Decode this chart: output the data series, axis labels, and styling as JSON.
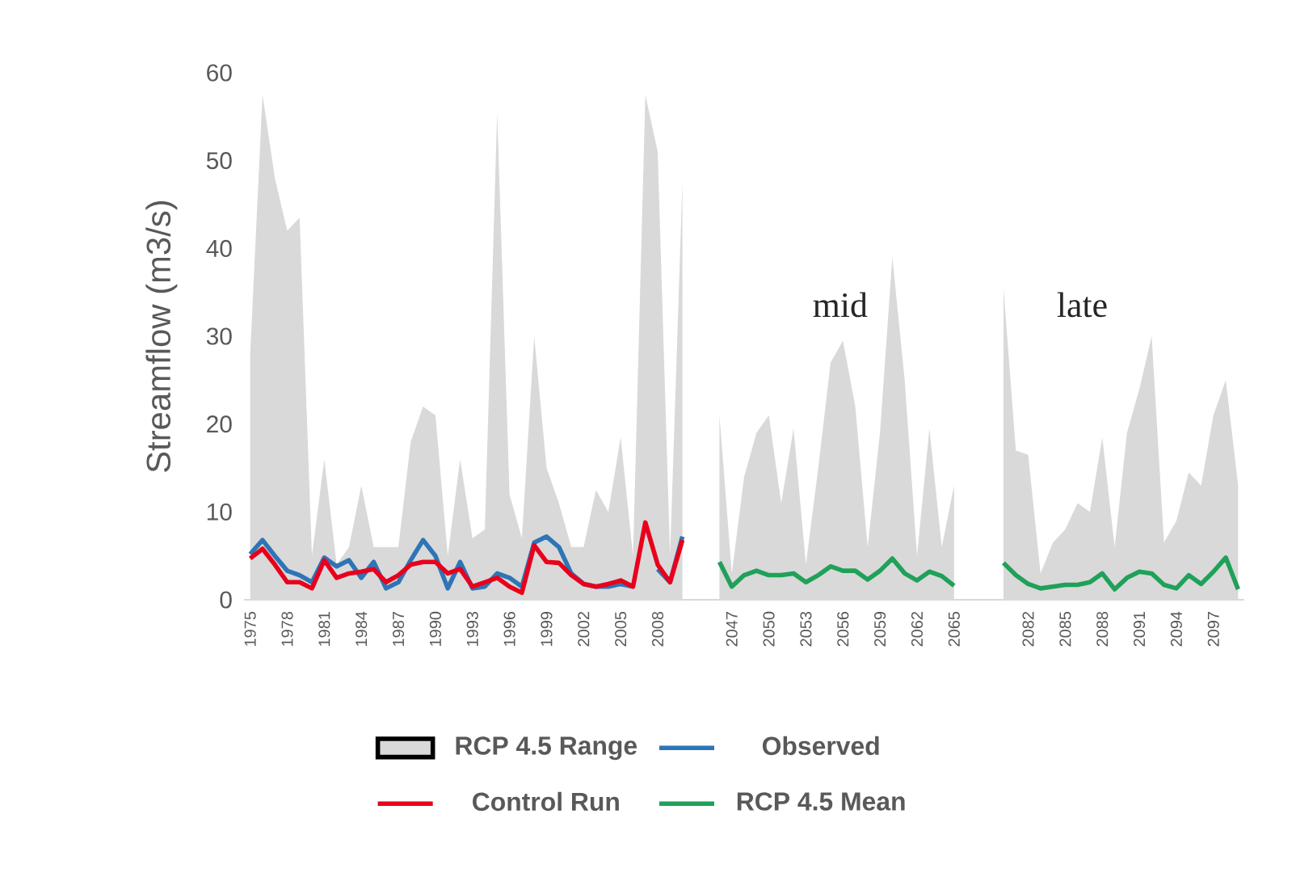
{
  "chart_data": {
    "type": "line",
    "ylabel": "Streamflow (m3/s)",
    "categories": [
      "1975",
      null,
      null,
      "1978",
      null,
      null,
      "1981",
      null,
      null,
      "1984",
      null,
      null,
      "1987",
      null,
      null,
      "1990",
      null,
      null,
      "1993",
      null,
      null,
      "1996",
      null,
      null,
      "1999",
      null,
      null,
      "2002",
      null,
      null,
      "2005",
      null,
      null,
      "2008",
      null,
      null,
      null,
      null,
      null,
      "2047",
      null,
      null,
      "2050",
      null,
      null,
      "2053",
      null,
      null,
      "2056",
      null,
      null,
      "2059",
      null,
      null,
      "2062",
      null,
      null,
      "2065",
      null,
      null,
      null,
      null,
      null,
      "2082",
      null,
      null,
      "2085",
      null,
      null,
      "2088",
      null,
      null,
      "2091",
      null,
      null,
      "2094",
      null,
      null,
      "2097",
      null,
      null
    ],
    "series": [
      {
        "name": "RCP 4.5 Range",
        "type": "area",
        "color": "#d9d9d9",
        "values": [
          28,
          57.5,
          48,
          42,
          43.5,
          5,
          16,
          4,
          6,
          13,
          6,
          6,
          6,
          18,
          22,
          21,
          5,
          16,
          7,
          8,
          55.5,
          12,
          7,
          30,
          15,
          11,
          6,
          6,
          12.5,
          10,
          18.5,
          5,
          57.5,
          51,
          5,
          47.5,
          null,
          null,
          21,
          3,
          14,
          19,
          21,
          11,
          19.5,
          4,
          15,
          27,
          29.5,
          22,
          6,
          19,
          39,
          25,
          5,
          19.5,
          6,
          13,
          null,
          null,
          null,
          35.5,
          17,
          16.5,
          3,
          6.5,
          8,
          11,
          10,
          18.5,
          6,
          19,
          24,
          30,
          6.5,
          9,
          14.5,
          13,
          21,
          25,
          13
        ]
      },
      {
        "name": "Observed",
        "color": "#2e75b6",
        "values": [
          5.2,
          6.8,
          5,
          3.3,
          2.8,
          2,
          4.8,
          3.8,
          4.5,
          2.5,
          4.3,
          1.3,
          2,
          4.5,
          6.8,
          5,
          1.3,
          4.3,
          1.3,
          1.5,
          3,
          2.5,
          1.5,
          6.5,
          7.2,
          6,
          3,
          1.8,
          1.5,
          1.5,
          1.8,
          1.5,
          null,
          3.5,
          2,
          7.2,
          null,
          null,
          null,
          null,
          null,
          null,
          null,
          null,
          null,
          null,
          null,
          null,
          null,
          null,
          null,
          null,
          null,
          null,
          null,
          null,
          null,
          null,
          null,
          null,
          null,
          null,
          null,
          null,
          null,
          null,
          null,
          null,
          null,
          null,
          null,
          null,
          null,
          null,
          null,
          null,
          null,
          null,
          null,
          null,
          null
        ]
      },
      {
        "name": "Control Run",
        "color": "#e8001c",
        "values": [
          4.7,
          5.8,
          4,
          2,
          2,
          1.3,
          4.5,
          2.5,
          3,
          3.2,
          3.5,
          2,
          2.8,
          4,
          4.3,
          4.3,
          3,
          3.5,
          1.5,
          2,
          2.5,
          1.5,
          0.8,
          6.2,
          4.3,
          4.2,
          2.8,
          1.8,
          1.5,
          1.8,
          2.2,
          1.5,
          8.8,
          4,
          2,
          6.8,
          null,
          null,
          null,
          null,
          null,
          null,
          null,
          null,
          null,
          null,
          null,
          null,
          null,
          null,
          null,
          null,
          null,
          null,
          null,
          null,
          null,
          null,
          null,
          null,
          null,
          null,
          null,
          null,
          null,
          null,
          null,
          null,
          null,
          null,
          null,
          null,
          null,
          null,
          null,
          null,
          null,
          null,
          null,
          null,
          null
        ]
      },
      {
        "name": "RCP 4.5 Mean",
        "color": "#1fa15a",
        "values": [
          null,
          null,
          null,
          null,
          null,
          null,
          null,
          null,
          null,
          null,
          null,
          null,
          null,
          null,
          null,
          null,
          null,
          null,
          null,
          null,
          null,
          null,
          null,
          null,
          null,
          null,
          null,
          null,
          null,
          null,
          null,
          null,
          null,
          null,
          null,
          null,
          null,
          null,
          4.3,
          1.5,
          2.8,
          3.3,
          2.8,
          2.8,
          3,
          2,
          2.8,
          3.8,
          3.3,
          3.3,
          2.3,
          3.3,
          4.7,
          3,
          2.2,
          3.2,
          2.7,
          1.6,
          null,
          null,
          null,
          4.2,
          2.8,
          1.8,
          1.3,
          1.5,
          1.7,
          1.7,
          2,
          3,
          1.2,
          2.5,
          3.2,
          3,
          1.7,
          1.3,
          2.8,
          1.8,
          3.2,
          4.8,
          1.2
        ]
      }
    ],
    "ylim": [
      0,
      60
    ],
    "yticks": [
      0,
      10,
      20,
      30,
      40,
      50,
      60
    ],
    "legend": "bottom",
    "annotations": [
      "mid",
      "late"
    ]
  }
}
